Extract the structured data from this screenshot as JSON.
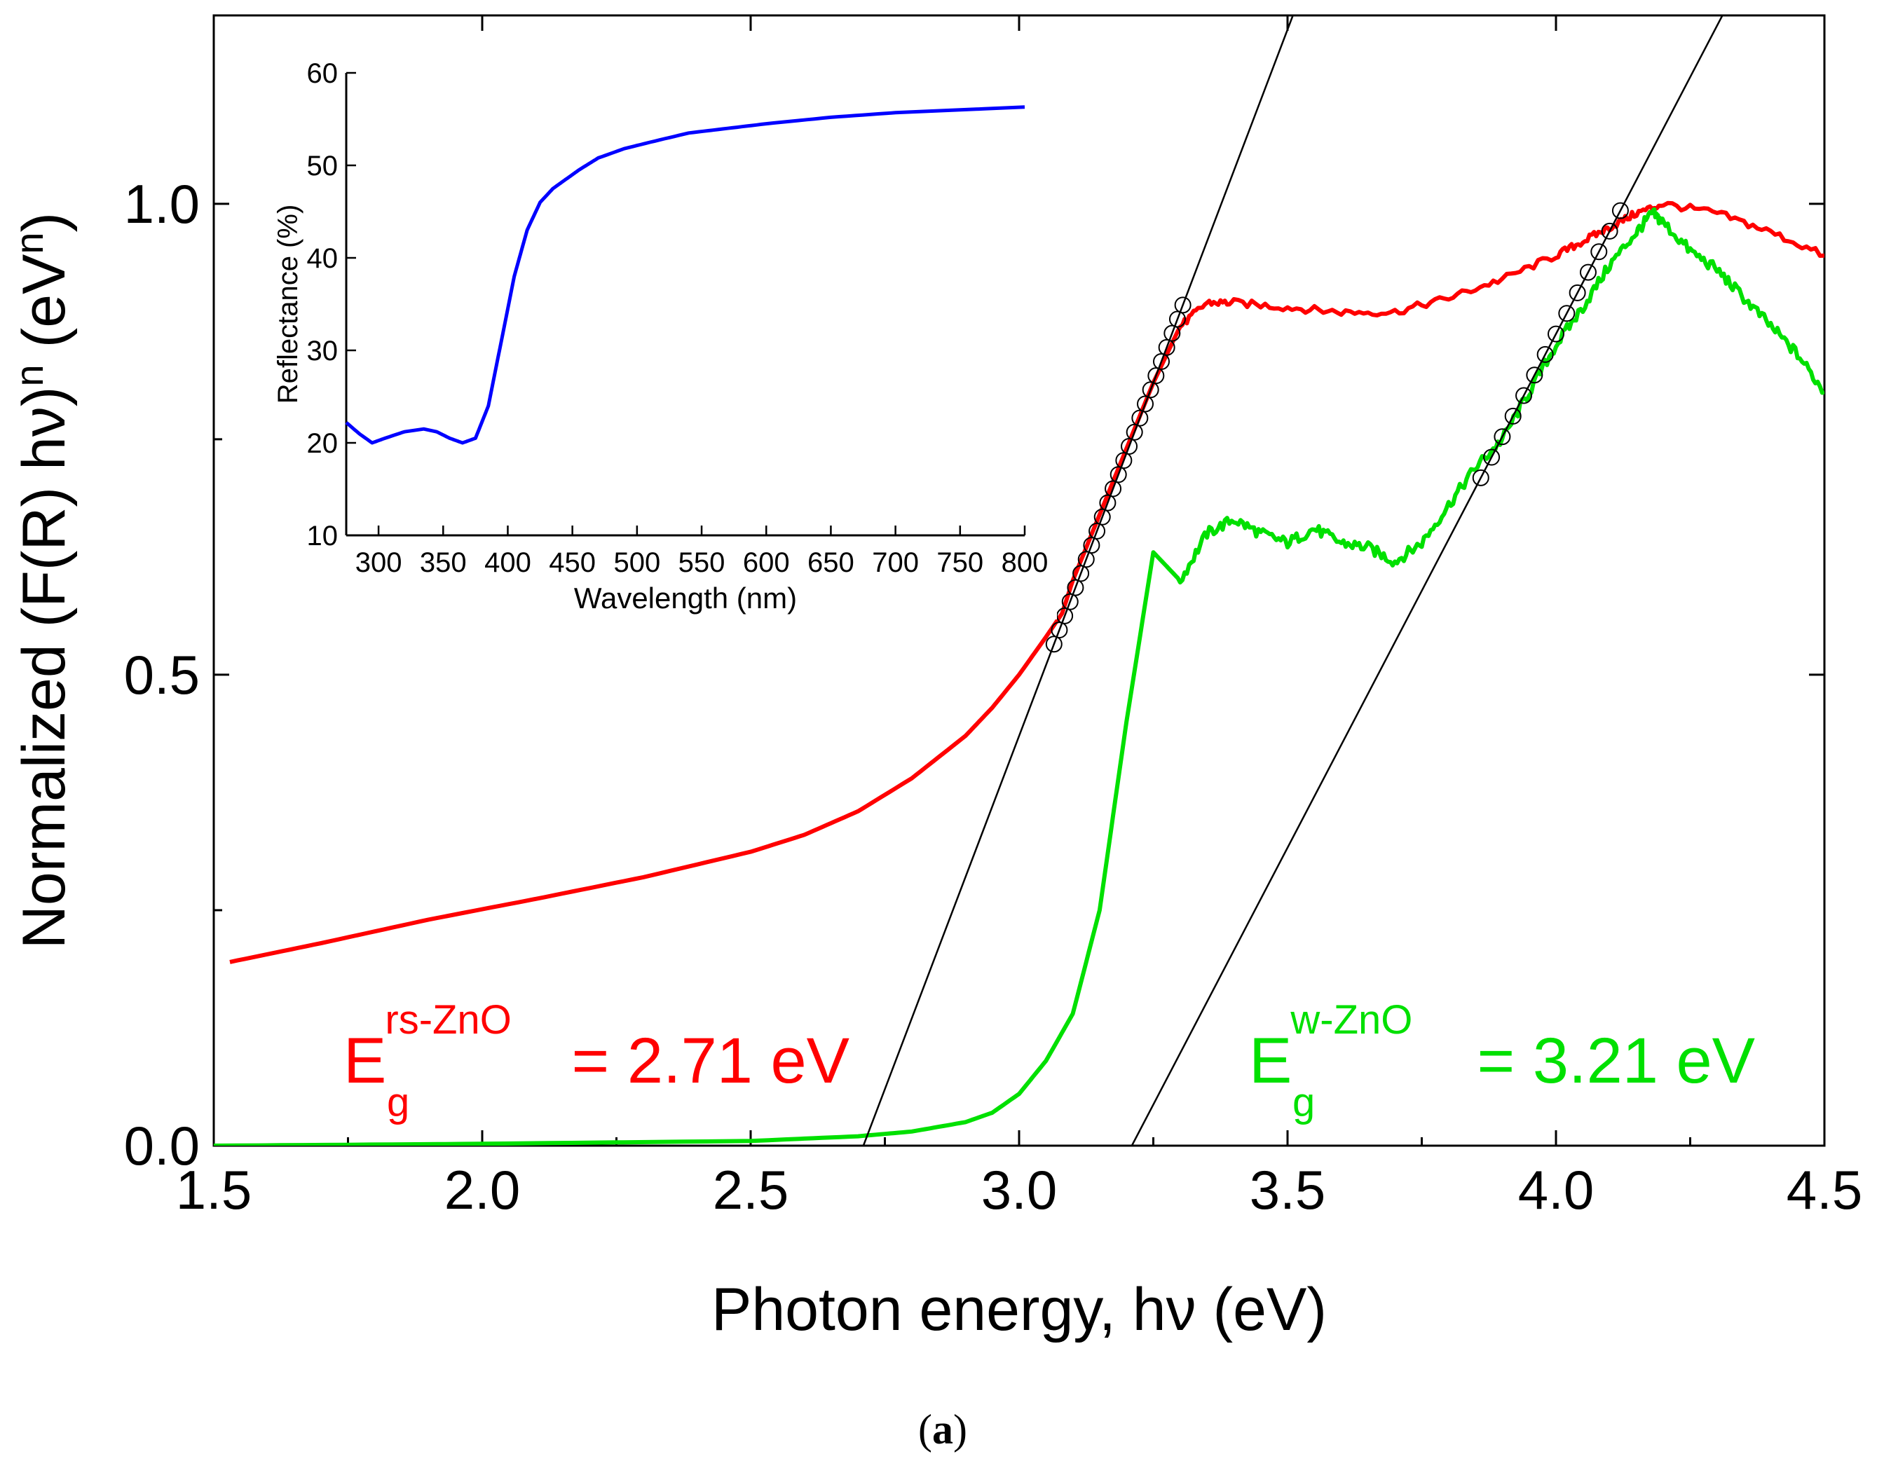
{
  "panel_label": {
    "open": "(",
    "letter": "a",
    "close": ")"
  },
  "colors": {
    "rs_curve": "#ff0000",
    "w_curve": "#00e000",
    "inset_curve": "#0000ff",
    "fit_line": "#000000",
    "axis": "#000000"
  },
  "chart_data": [
    {
      "type": "line",
      "name": "main-plot",
      "xlabel": "Photon energy, hν (eV)",
      "ylabel_parts": [
        "Normalized (F(R) hν)",
        "n",
        " (eV",
        "n",
        ")"
      ],
      "xlim": [
        1.5,
        4.5
      ],
      "ylim": [
        0.0,
        1.2
      ],
      "xticks": [
        1.5,
        2.0,
        2.5,
        3.0,
        3.5,
        4.0,
        4.5
      ],
      "xtick_labels": [
        "1.5",
        "2.0",
        "2.5",
        "3.0",
        "3.5",
        "4.0",
        "4.5"
      ],
      "yticks": [
        0.0,
        0.5,
        1.0
      ],
      "ytick_labels": [
        "0.0",
        "0.5",
        "1.0"
      ],
      "series": [
        {
          "name": "rs-ZnO",
          "color": "#ff0000",
          "x": [
            1.53,
            1.7,
            1.9,
            2.1,
            2.3,
            2.5,
            2.6,
            2.7,
            2.8,
            2.9,
            2.95,
            3.0,
            3.05,
            3.08,
            3.1,
            3.15,
            3.2,
            3.25,
            3.3,
            3.35,
            3.4,
            3.5,
            3.6,
            3.7,
            3.8,
            3.9,
            4.0,
            4.05,
            4.1,
            4.15,
            4.2,
            4.3,
            4.4,
            4.5
          ],
          "y": [
            0.195,
            0.215,
            0.24,
            0.262,
            0.285,
            0.312,
            0.33,
            0.355,
            0.39,
            0.435,
            0.465,
            0.5,
            0.54,
            0.565,
            0.6,
            0.67,
            0.74,
            0.81,
            0.87,
            0.895,
            0.895,
            0.89,
            0.885,
            0.885,
            0.9,
            0.92,
            0.945,
            0.96,
            0.975,
            0.99,
            1.0,
            0.99,
            0.97,
            0.945
          ]
        },
        {
          "name": "w-ZnO",
          "color": "#00e000",
          "x": [
            1.5,
            2.0,
            2.5,
            2.7,
            2.8,
            2.9,
            2.95,
            3.0,
            3.05,
            3.1,
            3.15,
            3.2,
            3.25,
            3.3,
            3.35,
            3.4,
            3.45,
            3.5,
            3.55,
            3.6,
            3.65,
            3.7,
            3.75,
            3.8,
            3.85,
            3.9,
            3.95,
            4.0,
            4.05,
            4.1,
            4.15,
            4.18,
            4.2,
            4.25,
            4.3,
            4.35,
            4.4,
            4.45,
            4.5
          ],
          "y": [
            0.0,
            0.002,
            0.005,
            0.01,
            0.015,
            0.025,
            0.035,
            0.055,
            0.09,
            0.14,
            0.25,
            0.45,
            0.63,
            0.6,
            0.65,
            0.665,
            0.65,
            0.64,
            0.655,
            0.64,
            0.635,
            0.62,
            0.64,
            0.68,
            0.72,
            0.75,
            0.8,
            0.85,
            0.89,
            0.935,
            0.97,
            0.99,
            0.98,
            0.95,
            0.93,
            0.9,
            0.87,
            0.84,
            0.8
          ]
        }
      ],
      "fit_lines": [
        {
          "name": "rs-fit",
          "x": [
            2.71,
            3.51
          ],
          "y": [
            0.0,
            1.2
          ]
        },
        {
          "name": "w-fit",
          "x": [
            3.21,
            4.31
          ],
          "y": [
            0.0,
            1.2
          ]
        }
      ],
      "fit_markers": [
        {
          "name": "rs-fit-points",
          "x": [
            3.065,
            3.075,
            3.085,
            3.095,
            3.105,
            3.115,
            3.125,
            3.135,
            3.145,
            3.155,
            3.165,
            3.175,
            3.185,
            3.195,
            3.205,
            3.215,
            3.225,
            3.235,
            3.245,
            3.255,
            3.265,
            3.275,
            3.285,
            3.295,
            3.305
          ]
        },
        {
          "name": "w-fit-points",
          "x": [
            3.86,
            3.88,
            3.9,
            3.92,
            3.94,
            3.96,
            3.98,
            4.0,
            4.02,
            4.04,
            4.06,
            4.08,
            4.1,
            4.12
          ]
        }
      ],
      "annotations": [
        {
          "name": "rs-bandgap",
          "main": "E",
          "sub": "g",
          "sup": "rs-ZnO",
          "rest": " = 2.71 eV",
          "color": "#ff0000"
        },
        {
          "name": "w-bandgap",
          "main": "E",
          "sub": "g",
          "sup": "w-ZnO",
          "rest": " = 3.21 eV",
          "color": "#00e000"
        }
      ]
    },
    {
      "type": "line",
      "name": "inset-plot",
      "xlabel": "Wavelength (nm)",
      "ylabel": "Reflectance (%)",
      "xlim": [
        275,
        800
      ],
      "ylim": [
        10,
        60
      ],
      "xticks": [
        300,
        350,
        400,
        450,
        500,
        550,
        600,
        650,
        700,
        750,
        800
      ],
      "xtick_labels": [
        "300",
        "350",
        "400",
        "450",
        "500",
        "550",
        "600",
        "650",
        "700",
        "750",
        "800"
      ],
      "yticks": [
        10,
        20,
        30,
        40,
        50,
        60
      ],
      "ytick_labels": [
        "10",
        "20",
        "30",
        "40",
        "50",
        "60"
      ],
      "series": [
        {
          "name": "reflectance",
          "color": "#0000ff",
          "x": [
            275,
            285,
            295,
            305,
            320,
            335,
            345,
            355,
            365,
            375,
            385,
            395,
            405,
            415,
            425,
            435,
            445,
            455,
            470,
            490,
            510,
            540,
            570,
            600,
            650,
            700,
            750,
            800
          ],
          "y": [
            22.2,
            21.0,
            20.0,
            20.5,
            21.2,
            21.5,
            21.2,
            20.5,
            20.0,
            20.5,
            24.0,
            31.0,
            38.0,
            43.0,
            46.0,
            47.5,
            48.5,
            49.5,
            50.8,
            51.8,
            52.5,
            53.5,
            54.0,
            54.5,
            55.2,
            55.7,
            56.0,
            56.3
          ]
        }
      ]
    }
  ]
}
